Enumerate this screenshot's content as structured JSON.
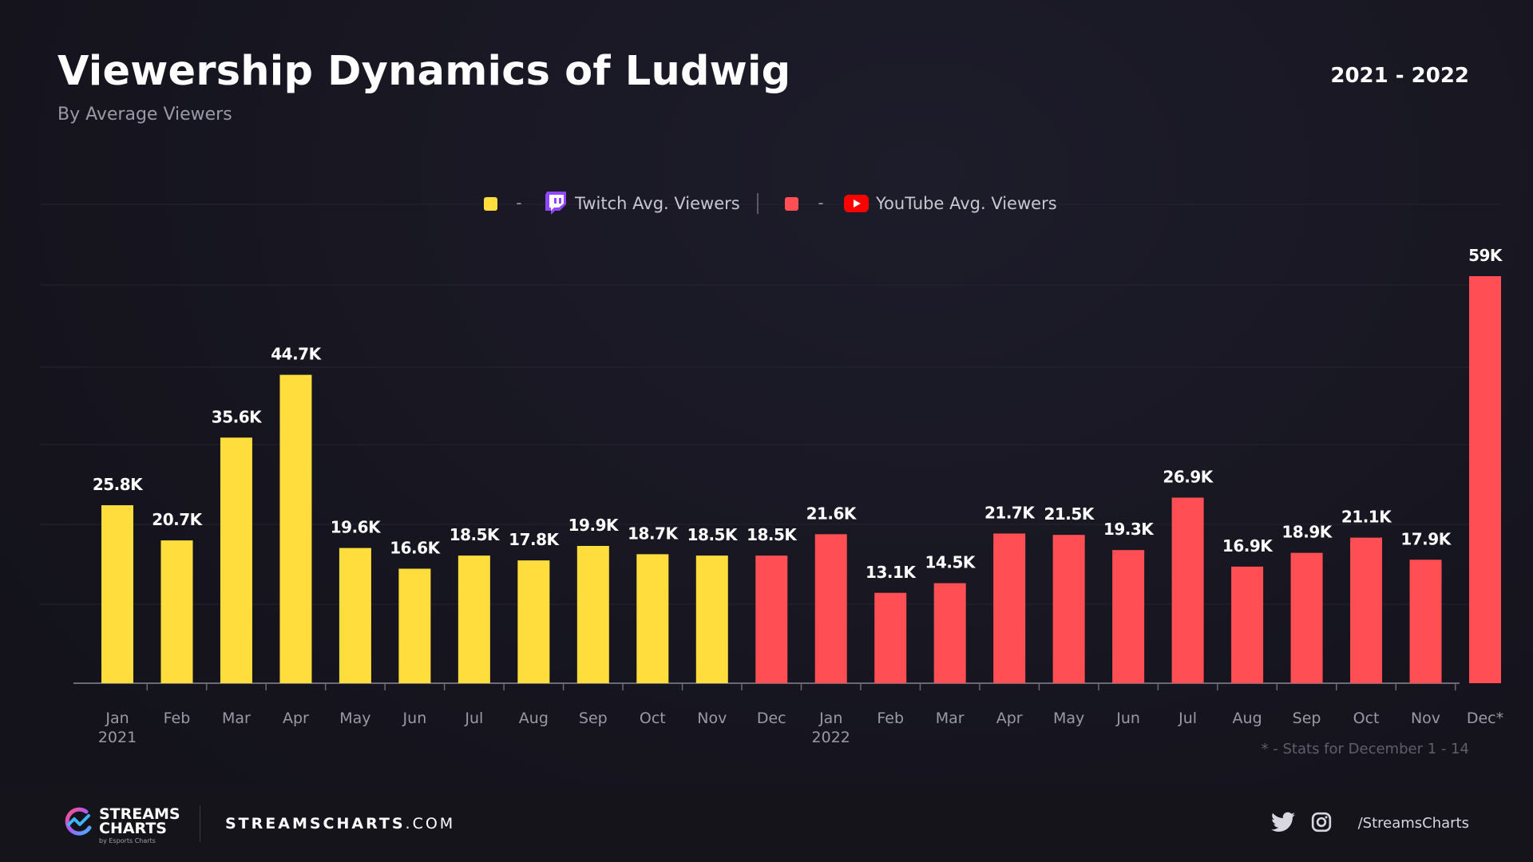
{
  "header": {
    "title": "Viewership Dynamics of Ludwig",
    "subtitle": "By Average Viewers",
    "period": "2021 - 2022"
  },
  "legend": {
    "separator": "-",
    "items": [
      {
        "label": "Twitch Avg. Viewers",
        "color": "#ffdd3c",
        "icon": "twitch-icon"
      },
      {
        "label": "YouTube Avg. Viewers",
        "color": "#ff4f55",
        "icon": "youtube-icon"
      }
    ]
  },
  "chart_data": {
    "type": "bar",
    "title": "Viewership Dynamics of Ludwig",
    "subtitle": "By Average Viewers",
    "ylim": [
      0,
      59000
    ],
    "grid": true,
    "legend_position": "top-center",
    "categories": [
      {
        "month": "Jan",
        "year": "2021"
      },
      {
        "month": "Feb",
        "year": ""
      },
      {
        "month": "Mar",
        "year": ""
      },
      {
        "month": "Apr",
        "year": ""
      },
      {
        "month": "May",
        "year": ""
      },
      {
        "month": "Jun",
        "year": ""
      },
      {
        "month": "Jul",
        "year": ""
      },
      {
        "month": "Aug",
        "year": ""
      },
      {
        "month": "Sep",
        "year": ""
      },
      {
        "month": "Oct",
        "year": ""
      },
      {
        "month": "Nov",
        "year": ""
      },
      {
        "month": "Dec",
        "year": ""
      },
      {
        "month": "Jan",
        "year": "2022"
      },
      {
        "month": "Feb",
        "year": ""
      },
      {
        "month": "Mar",
        "year": ""
      },
      {
        "month": "Apr",
        "year": ""
      },
      {
        "month": "May",
        "year": ""
      },
      {
        "month": "Jun",
        "year": ""
      },
      {
        "month": "Jul",
        "year": ""
      },
      {
        "month": "Aug",
        "year": ""
      },
      {
        "month": "Sep",
        "year": ""
      },
      {
        "month": "Oct",
        "year": ""
      },
      {
        "month": "Nov",
        "year": ""
      },
      {
        "month": "Dec*",
        "year": ""
      }
    ],
    "series": [
      {
        "name": "Twitch Avg. Viewers",
        "color": "#ffdd3c",
        "values": [
          25800,
          20700,
          35600,
          44700,
          19600,
          16600,
          18500,
          17800,
          19900,
          18700,
          18500,
          null,
          null,
          null,
          null,
          null,
          null,
          null,
          null,
          null,
          null,
          null,
          null,
          null
        ],
        "labels": [
          "25.8K",
          "20.7K",
          "35.6K",
          "44.7K",
          "19.6K",
          "16.6K",
          "18.5K",
          "17.8K",
          "19.9K",
          "18.7K",
          "18.5K",
          "",
          "",
          "",
          "",
          "",
          "",
          "",
          "",
          "",
          "",
          "",
          "",
          ""
        ]
      },
      {
        "name": "YouTube Avg. Viewers",
        "color": "#ff4f55",
        "values": [
          null,
          null,
          null,
          null,
          null,
          null,
          null,
          null,
          null,
          null,
          null,
          18500,
          21600,
          13100,
          14500,
          21700,
          21500,
          19300,
          26900,
          16900,
          18900,
          21100,
          17900,
          59000
        ],
        "labels": [
          "",
          "",
          "",
          "",
          "",
          "",
          "",
          "",
          "",
          "",
          "",
          "18.5K",
          "21.6K",
          "13.1K",
          "14.5K",
          "21.7K",
          "21.5K",
          "19.3K",
          "26.9K",
          "16.9K",
          "18.9K",
          "21.1K",
          "17.9K",
          "59K"
        ]
      }
    ],
    "annotations": [
      "* - Stats for December 1 - 14"
    ]
  },
  "footnote": "* - Stats for December 1 - 14",
  "footer": {
    "brand_line1": "STREAMS",
    "brand_line2": "CHARTS",
    "brand_sub": "by Esports Charts",
    "site_bold": "STREAMSCHARTS",
    "site_rest": ".COM",
    "handle": "/StreamsCharts",
    "icons": [
      "streamscharts-logo-icon",
      "twitter-icon",
      "instagram-icon"
    ]
  }
}
